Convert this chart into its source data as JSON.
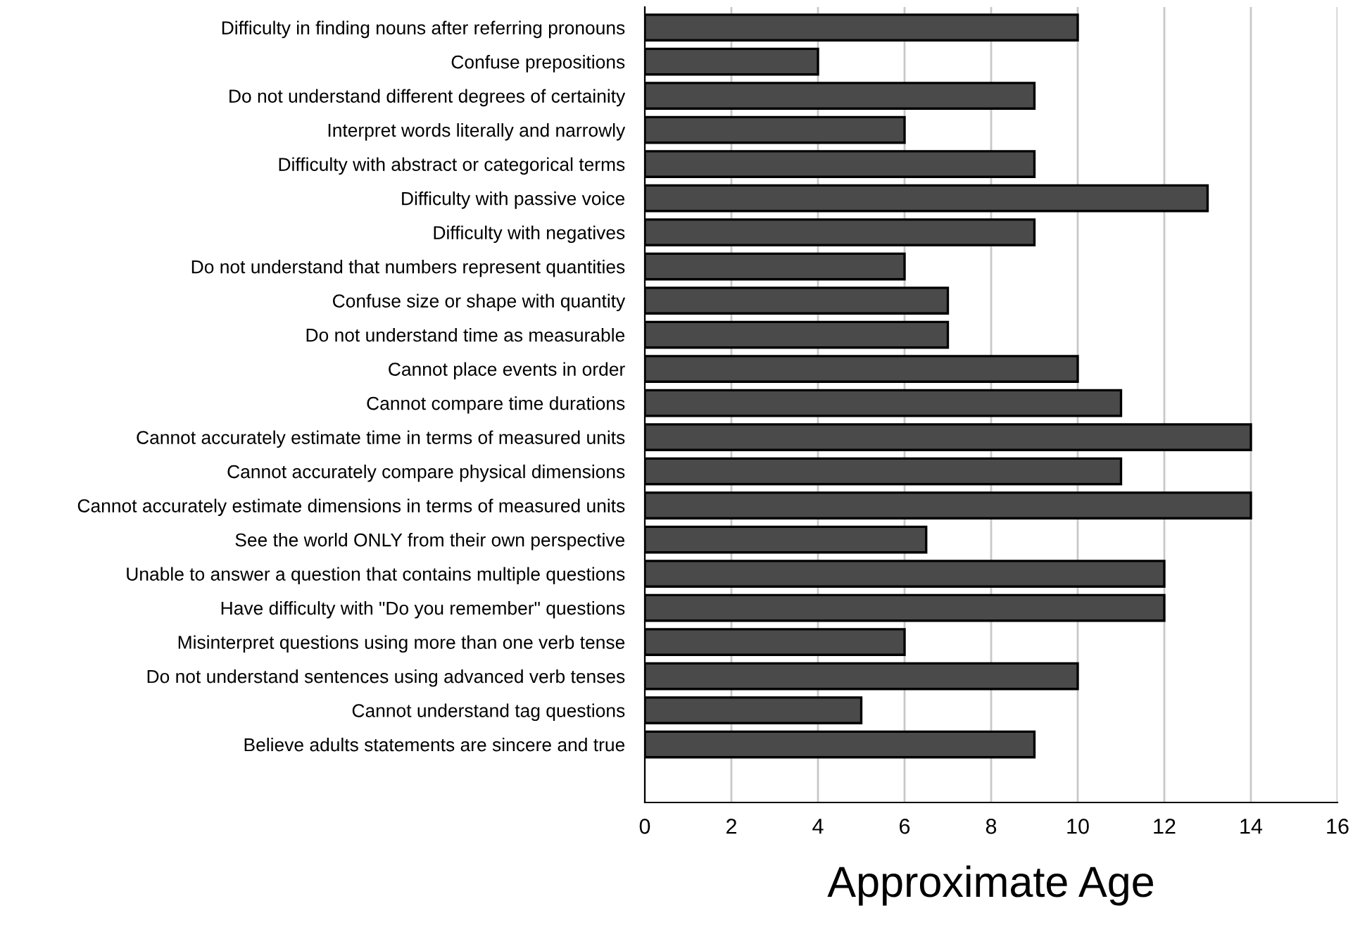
{
  "chart_data": {
    "type": "bar",
    "orientation": "horizontal",
    "xlabel": "Approximate Age",
    "categories": [
      "Difficulty in finding nouns after referring pronouns",
      "Confuse prepositions",
      "Do not understand different degrees of certainity",
      "Interpret words literally and narrowly",
      "Difficulty with abstract or categorical terms",
      "Difficulty with passive voice",
      "Difficulty with negatives",
      "Do not understand that numbers represent quantities",
      "Confuse size or shape with quantity",
      "Do not understand time as measurable",
      "Cannot place events in order",
      "Cannot compare time durations",
      "Cannot accurately estimate time in terms of measured units",
      "Cannot accurately compare physical dimensions",
      "Cannot accurately estimate dimensions in terms of measured units",
      "See the world ONLY from their own perspective",
      "Unable to answer a question that contains multiple questions",
      "Have difficulty with \"Do you remember\" questions",
      "Misinterpret questions using more than one verb tense",
      "Do not understand sentences using advanced verb tenses",
      "Cannot understand tag questions",
      "Believe adults statements are sincere and true"
    ],
    "values": [
      10,
      4,
      9,
      6,
      9,
      13,
      9,
      6,
      7,
      7,
      10,
      11,
      14,
      11,
      14,
      6.5,
      12,
      12,
      6,
      10,
      5,
      9
    ],
    "color": "#4a4a4a",
    "xlim": [
      0,
      16
    ],
    "xticks": [
      0,
      2,
      4,
      6,
      8,
      10,
      12,
      14,
      16
    ],
    "grid": "x"
  }
}
